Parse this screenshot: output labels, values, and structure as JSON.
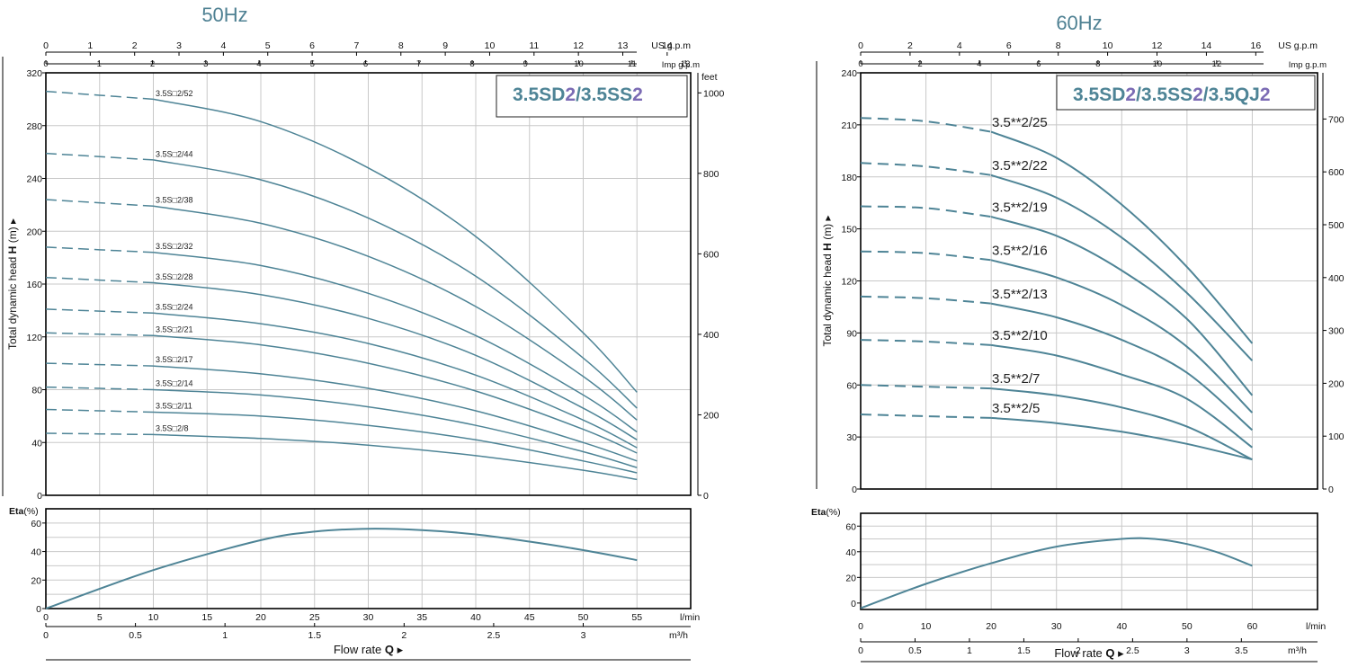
{
  "chart_data": [
    {
      "id": "hz50",
      "type": "line",
      "title": "50Hz",
      "model": [
        {
          "text": "3.5SD",
          "color": "#4e8496"
        },
        {
          "text": "2",
          "color": "#7b6bb4"
        },
        {
          "text": "/3.5SS",
          "color": "#4e8496"
        },
        {
          "text": "2",
          "color": "#7b6bb4"
        }
      ],
      "us_gpm_label": "US g.p.m",
      "imp_gpm_label": "Imp g.p.m",
      "feet_label": "feet",
      "ylabel_pre": "Total dynamic head ",
      "ylabel_bold": "H",
      "ylabel_post": " (m) ▸",
      "eta_label_bold": "Eta",
      "eta_label_post": "(%)",
      "flow_label": "Flow  rate",
      "flow_q": "Q",
      "flow_arrow": "▸",
      "lmin_label": "l/min",
      "m3h_label": "m³/h",
      "x_lmin_range": [
        0,
        60
      ],
      "x_lmin_ticks": [
        0,
        5,
        10,
        15,
        20,
        25,
        30,
        35,
        40,
        45,
        50,
        55
      ],
      "x_m3h_ticks": [
        "0",
        "0.5",
        "1",
        "1.5",
        "2",
        "2.5",
        "3"
      ],
      "us_gpm_ticks": [
        "0",
        "1",
        "2",
        "3",
        "4",
        "5",
        "6",
        "7",
        "8",
        "9",
        "10",
        "11",
        "12",
        "13",
        "14"
      ],
      "imp_gpm_ticks": [
        "0",
        "1",
        "2",
        "3",
        "4",
        "5",
        "6",
        "7",
        "8",
        "9",
        "10",
        "11",
        "12"
      ],
      "y_range": [
        0,
        320
      ],
      "y_ticks": [
        0,
        40,
        80,
        120,
        160,
        200,
        240,
        280,
        320
      ],
      "feet_ticks": [
        "0",
        "200",
        "400",
        "600",
        "800",
        "1000"
      ],
      "eta_range": [
        0,
        70
      ],
      "eta_ticks": [
        0,
        20,
        40,
        60
      ],
      "dashed_until_lmin": 10,
      "series": [
        {
          "name": "3.5S□2/52",
          "x": [
            0,
            10,
            20,
            30,
            40,
            50,
            55
          ],
          "y": [
            306,
            300,
            283,
            248,
            196,
            123,
            78
          ]
        },
        {
          "name": "3.5S□2/44",
          "x": [
            0,
            10,
            20,
            30,
            40,
            50,
            55
          ],
          "y": [
            259,
            254,
            239,
            210,
            166,
            104,
            66
          ]
        },
        {
          "name": "3.5S□2/38",
          "x": [
            0,
            10,
            20,
            30,
            40,
            50,
            55
          ],
          "y": [
            224,
            219,
            206,
            181,
            143,
            90,
            57
          ]
        },
        {
          "name": "3.5S□2/32",
          "x": [
            0,
            10,
            20,
            30,
            40,
            50,
            55
          ],
          "y": [
            188,
            184,
            174,
            153,
            121,
            76,
            48
          ]
        },
        {
          "name": "3.5S□2/28",
          "x": [
            0,
            10,
            20,
            30,
            40,
            50,
            55
          ],
          "y": [
            165,
            161,
            152,
            134,
            106,
            66,
            42
          ]
        },
        {
          "name": "3.5S□2/24",
          "x": [
            0,
            10,
            20,
            30,
            40,
            50,
            55
          ],
          "y": [
            141,
            138,
            130,
            115,
            91,
            57,
            36
          ]
        },
        {
          "name": "3.5S□2/21",
          "x": [
            0,
            10,
            20,
            30,
            40,
            50,
            55
          ],
          "y": [
            123,
            121,
            114,
            100,
            79,
            50,
            32
          ]
        },
        {
          "name": "3.5S□2/17",
          "x": [
            0,
            10,
            20,
            30,
            40,
            50,
            55
          ],
          "y": [
            100,
            98,
            92,
            81,
            64,
            40,
            26
          ]
        },
        {
          "name": "3.5S□2/14",
          "x": [
            0,
            10,
            20,
            30,
            40,
            50,
            55
          ],
          "y": [
            82,
            80,
            76,
            67,
            53,
            33,
            21
          ]
        },
        {
          "name": "3.5S□2/11",
          "x": [
            0,
            10,
            20,
            30,
            40,
            50,
            55
          ],
          "y": [
            65,
            63,
            60,
            53,
            42,
            26,
            17
          ]
        },
        {
          "name": "3.5S□2/8",
          "x": [
            0,
            10,
            20,
            30,
            40,
            50,
            55
          ],
          "y": [
            47,
            46,
            43,
            38,
            30,
            19,
            12
          ]
        }
      ],
      "efficiency": {
        "x": [
          0,
          10,
          20,
          25,
          30,
          35,
          40,
          45,
          50,
          55
        ],
        "y": [
          0,
          27,
          48,
          54,
          56,
          55,
          52,
          47,
          41,
          34
        ]
      }
    },
    {
      "id": "hz60",
      "type": "line",
      "title": "60Hz",
      "model": [
        {
          "text": "3.5SD",
          "color": "#4e8496"
        },
        {
          "text": "2",
          "color": "#7b6bb4"
        },
        {
          "text": "/3.5SS",
          "color": "#4e8496"
        },
        {
          "text": "2",
          "color": "#7b6bb4"
        },
        {
          "text": "/3.5QJ",
          "color": "#4e8496"
        },
        {
          "text": "2",
          "color": "#7b6bb4"
        }
      ],
      "us_gpm_label": "US g.p.m",
      "imp_gpm_label": "Imp g.p.m",
      "ylabel_pre": "Total dynamic head ",
      "ylabel_bold": "H",
      "ylabel_post": " (m) ▸",
      "eta_label_bold": "Eta",
      "eta_label_post": "(%)",
      "flow_label": "Flow  rate",
      "flow_q": "Q",
      "flow_arrow": "▸",
      "lmin_label": "l/min",
      "m3h_label": "m³/h",
      "x_lmin_range": [
        0,
        70
      ],
      "x_lmin_ticks": [
        0,
        10,
        20,
        30,
        40,
        50,
        60
      ],
      "x_m3h_ticks": [
        "0",
        "0.5",
        "1",
        "1.5",
        "2",
        "2.5",
        "3",
        "3.5"
      ],
      "us_gpm_ticks": [
        "0",
        "2",
        "4",
        "6",
        "8",
        "10",
        "12",
        "14",
        "16"
      ],
      "imp_gpm_ticks": [
        "0",
        "2",
        "4",
        "6",
        "8",
        "10",
        "12"
      ],
      "y_range": [
        0,
        240
      ],
      "y_ticks": [
        0,
        30,
        60,
        90,
        120,
        150,
        180,
        210,
        240
      ],
      "feet_ticks": [
        "0",
        "100",
        "200",
        "300",
        "400",
        "500",
        "600",
        "700"
      ],
      "eta_range": [
        -5,
        70
      ],
      "eta_ticks": [
        0,
        20,
        40,
        60
      ],
      "dashed_until_lmin": 20,
      "series": [
        {
          "name": "3.5**2/25",
          "x": [
            0,
            10,
            20,
            30,
            40,
            50,
            60
          ],
          "y": [
            214,
            212,
            206,
            191,
            164,
            128,
            84
          ]
        },
        {
          "name": "3.5**2/22",
          "x": [
            0,
            10,
            20,
            30,
            40,
            50,
            60
          ],
          "y": [
            188,
            186,
            181,
            168,
            145,
            113,
            74
          ]
        },
        {
          "name": "3.5**2/19",
          "x": [
            0,
            10,
            20,
            30,
            40,
            50,
            60
          ],
          "y": [
            163,
            162,
            157,
            146,
            126,
            98,
            54
          ]
        },
        {
          "name": "3.5**2/16",
          "x": [
            0,
            10,
            20,
            30,
            40,
            50,
            60
          ],
          "y": [
            137,
            136,
            132,
            122,
            106,
            82,
            44
          ]
        },
        {
          "name": "3.5**2/13",
          "x": [
            0,
            10,
            20,
            30,
            40,
            50,
            60
          ],
          "y": [
            111,
            110,
            107,
            99,
            86,
            67,
            34
          ]
        },
        {
          "name": "3.5**2/10",
          "x": [
            0,
            10,
            20,
            30,
            40,
            50,
            60
          ],
          "y": [
            86,
            85,
            83,
            77,
            66,
            52,
            24
          ]
        },
        {
          "name": "3.5**2/7",
          "x": [
            0,
            10,
            20,
            30,
            40,
            50,
            60
          ],
          "y": [
            60,
            59,
            58,
            54,
            47,
            36,
            17
          ]
        },
        {
          "name": "3.5**2/5",
          "x": [
            0,
            10,
            20,
            30,
            40,
            50,
            60
          ],
          "y": [
            43,
            42,
            41,
            38,
            33,
            26,
            17
          ]
        }
      ],
      "efficiency": {
        "x": [
          0,
          10,
          20,
          30,
          40,
          45,
          50,
          55,
          60
        ],
        "y": [
          -4,
          15,
          31,
          44,
          50,
          50,
          46,
          39,
          29
        ]
      }
    }
  ]
}
